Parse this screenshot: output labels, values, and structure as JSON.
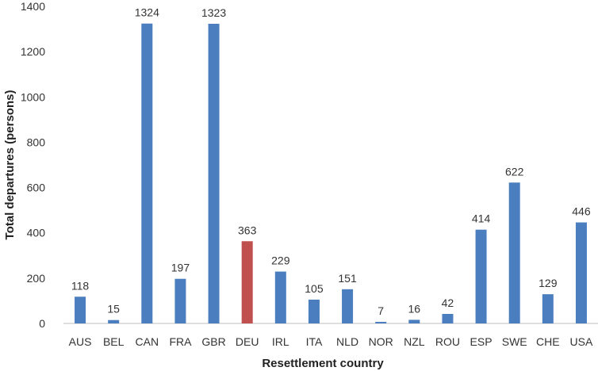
{
  "chart_data": {
    "type": "bar",
    "categories": [
      "AUS",
      "BEL",
      "CAN",
      "FRA",
      "GBR",
      "DEU",
      "IRL",
      "ITA",
      "NLD",
      "NOR",
      "NZL",
      "ROU",
      "ESP",
      "SWE",
      "CHE",
      "USA"
    ],
    "values": [
      118,
      15,
      1324,
      197,
      1323,
      363,
      229,
      105,
      151,
      7,
      16,
      42,
      414,
      622,
      129,
      446
    ],
    "data_labels": [
      "118",
      "15",
      "1324",
      "197",
      "1323",
      "363",
      "229",
      "105",
      "151",
      "7",
      "16",
      "42",
      "414",
      "622",
      "129",
      "446"
    ],
    "title": "",
    "xlabel": "Resettlement country",
    "ylabel": "Total departures (persons)",
    "ylim": [
      0,
      1400
    ],
    "yticks": [
      "0",
      "200",
      "400",
      "600",
      "800",
      "1000",
      "1200",
      "1400"
    ],
    "grid": false,
    "legend": "none",
    "colors": {
      "default": "#4a7ebf",
      "highlight": "#c0504d",
      "axis": "#bfbfbf"
    },
    "highlight_category": "DEU"
  }
}
